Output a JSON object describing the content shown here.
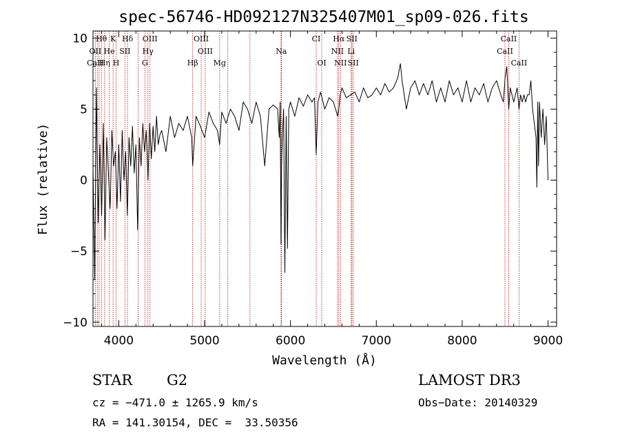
{
  "chart_data": {
    "type": "line",
    "title": "spec-56746-HD092127N325407M01_sp09-026.fits",
    "xlabel": "Wavelength (Å)",
    "ylabel": "Flux (relative)",
    "xlim": [
      3700,
      9100
    ],
    "ylim": [
      -10.3,
      10.5
    ],
    "xticks": [
      4000,
      5000,
      6000,
      7000,
      8000,
      9000
    ],
    "yticks": [
      -10,
      -5,
      0,
      5,
      10
    ],
    "grid": false,
    "series": [
      {
        "name": "spectrum",
        "x": [
          3700,
          3720,
          3740,
          3760,
          3780,
          3800,
          3820,
          3840,
          3860,
          3880,
          3900,
          3920,
          3940,
          3960,
          3980,
          4000,
          4020,
          4040,
          4060,
          4080,
          4100,
          4120,
          4140,
          4160,
          4180,
          4200,
          4220,
          4240,
          4260,
          4280,
          4300,
          4320,
          4340,
          4360,
          4380,
          4400,
          4420,
          4440,
          4460,
          4480,
          4500,
          4550,
          4600,
          4650,
          4700,
          4750,
          4800,
          4850,
          4861,
          4900,
          4950,
          5000,
          5050,
          5100,
          5150,
          5175,
          5200,
          5250,
          5300,
          5350,
          5400,
          5450,
          5500,
          5550,
          5600,
          5650,
          5700,
          5750,
          5800,
          5850,
          5870,
          5880,
          5890,
          5896,
          5905,
          5920,
          5935,
          5950,
          5965,
          5980,
          6000,
          6050,
          6100,
          6150,
          6200,
          6250,
          6280,
          6300,
          6320,
          6350,
          6400,
          6450,
          6500,
          6550,
          6563,
          6580,
          6600,
          6650,
          6700,
          6750,
          6800,
          6850,
          6900,
          6950,
          7000,
          7050,
          7100,
          7150,
          7200,
          7250,
          7280,
          7300,
          7350,
          7400,
          7450,
          7500,
          7550,
          7600,
          7650,
          7700,
          7750,
          7800,
          7850,
          7900,
          7950,
          8000,
          8050,
          8100,
          8150,
          8200,
          8250,
          8300,
          8350,
          8400,
          8450,
          8480,
          8500,
          8520,
          8542,
          8560,
          8600,
          8620,
          8640,
          8662,
          8680,
          8700,
          8720,
          8740,
          8760,
          8780,
          8800,
          8820,
          8840,
          8860,
          8870,
          8880,
          8890,
          8900,
          8920,
          8940,
          8960,
          8980,
          9000
        ],
        "y": [
          1.0,
          -7.0,
          6.5,
          -3.0,
          2.5,
          -2.5,
          4.0,
          -4.2,
          3.0,
          0.5,
          -2.0,
          3.5,
          1.0,
          2.0,
          -2.0,
          2.5,
          -1.5,
          3.5,
          0.0,
          2.0,
          -2.5,
          3.0,
          1.0,
          3.8,
          0.5,
          2.5,
          -3.5,
          3.0,
          1.0,
          4.0,
          2.0,
          3.5,
          0.0,
          4.0,
          1.5,
          3.8,
          2.0,
          4.5,
          2.5,
          3.2,
          3.5,
          2.0,
          4.5,
          3.0,
          4.0,
          3.5,
          4.5,
          3.0,
          1.0,
          4.5,
          3.8,
          3.0,
          4.8,
          4.0,
          3.5,
          2.5,
          4.8,
          4.0,
          5.0,
          4.5,
          3.5,
          5.5,
          5.0,
          4.0,
          5.5,
          4.5,
          1.0,
          5.0,
          5.3,
          5.0,
          3.0,
          5.5,
          -4.5,
          1.0,
          3.0,
          5.0,
          -6.5,
          4.5,
          -4.8,
          5.0,
          5.5,
          4.5,
          5.8,
          5.2,
          6.0,
          5.5,
          5.8,
          1.8,
          5.5,
          6.2,
          5.0,
          5.8,
          5.5,
          4.5,
          5.0,
          6.0,
          6.5,
          5.8,
          6.0,
          6.2,
          5.5,
          6.5,
          5.8,
          6.0,
          6.5,
          6.0,
          6.8,
          6.2,
          6.5,
          7.2,
          8.2,
          7.0,
          5.0,
          6.5,
          7.0,
          6.0,
          6.8,
          6.0,
          7.0,
          5.5,
          6.5,
          5.5,
          7.0,
          6.0,
          6.5,
          5.5,
          7.0,
          5.5,
          6.5,
          6.0,
          6.8,
          5.5,
          6.5,
          7.0,
          6.0,
          5.5,
          7.2,
          8.0,
          5.0,
          6.5,
          5.5,
          6.0,
          6.5,
          5.0,
          6.0,
          5.5,
          6.0,
          5.5,
          6.0,
          6.0,
          7.0,
          5.0,
          4.0,
          3.0,
          -0.5,
          5.5,
          1.0,
          5.5,
          3.0,
          5.0,
          2.5,
          4.5,
          0.0
        ]
      }
    ],
    "line_markers": [
      {
        "label": "Hθ",
        "x": 3798,
        "row": 0
      },
      {
        "label": "K",
        "x": 3934,
        "row": 0
      },
      {
        "label": "Hδ",
        "x": 4102,
        "row": 0
      },
      {
        "label": "OIII",
        "x": 4364,
        "row": 0
      },
      {
        "label": "OIII",
        "x": 4960,
        "row": 0
      },
      {
        "label": "CI",
        "x": 6300,
        "row": 0
      },
      {
        "label": "Hα",
        "x": 6563,
        "row": 0
      },
      {
        "label": "SII",
        "x": 6716,
        "row": 0
      },
      {
        "label": "CaII",
        "x": 8542,
        "row": 0
      },
      {
        "label": "OII",
        "x": 3727,
        "row": 1
      },
      {
        "label": "He",
        "x": 3889,
        "row": 1
      },
      {
        "label": "SII",
        "x": 4072,
        "row": 1
      },
      {
        "label": "Hγ",
        "x": 4340,
        "row": 1
      },
      {
        "label": "OIII",
        "x": 5007,
        "row": 1
      },
      {
        "label": "Na",
        "x": 5893,
        "row": 1
      },
      {
        "label": "NII",
        "x": 6548,
        "row": 1
      },
      {
        "label": "Li",
        "x": 6707,
        "row": 1
      },
      {
        "label": "CaII",
        "x": 8498,
        "row": 1
      },
      {
        "label": "CaH",
        "x": 3727,
        "row": 2
      },
      {
        "label": "Hη",
        "x": 3835,
        "row": 2
      },
      {
        "label": "H",
        "x": 3969,
        "row": 2
      },
      {
        "label": "G",
        "x": 4305,
        "row": 2
      },
      {
        "label": "Hβ",
        "x": 4861,
        "row": 2
      },
      {
        "label": "Mg",
        "x": 5175,
        "row": 2
      },
      {
        "label": "OI",
        "x": 6364,
        "row": 2
      },
      {
        "label": "NII",
        "x": 6583,
        "row": 2
      },
      {
        "label": "SII",
        "x": 6731,
        "row": 2
      },
      {
        "label": "CaII",
        "x": 8662,
        "row": 2
      }
    ],
    "extra_marker_x": [
      3750,
      3771,
      3889,
      4226,
      5270,
      5528,
      5890,
      5896
    ]
  },
  "info": {
    "object_class": "STAR",
    "subclass": "G2",
    "survey": "LAMOST DR3",
    "cz": "cz = −471.0 ± 1265.9 km/s",
    "obs_date": "Obs−Date: 20140329",
    "coords": "RA = 141.30154, DEC =  33.50356"
  },
  "colors": {
    "spectrum": "#000000",
    "marker_line": "#cc0000",
    "frame": "#000000"
  }
}
